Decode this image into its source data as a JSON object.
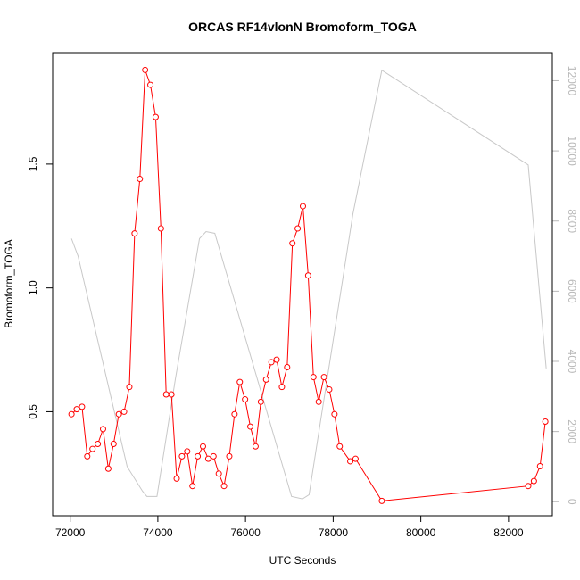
{
  "chart_data": {
    "type": "line",
    "title": "ORCAS RF14vlonN Bromoform_TOGA",
    "xlabel": "UTC Seconds",
    "ylabel": "Bromoform_TOGA",
    "xlim": [
      71600,
      83000
    ],
    "ylim": [
      0.08,
      1.95
    ],
    "y2lim": [
      -400,
      12800
    ],
    "x_ticks": [
      72000,
      74000,
      76000,
      78000,
      80000,
      82000
    ],
    "y_ticks": [
      0.5,
      1.0,
      1.5
    ],
    "y_tick_labels": [
      "0.5",
      "1.0",
      "1.5"
    ],
    "y2_ticks": [
      0,
      2000,
      4000,
      6000,
      8000,
      10000,
      12000
    ],
    "grid": false,
    "colors": {
      "primary": "#ff0000",
      "secondary": "#c8c8c8",
      "frame": "#000000",
      "right_axis": "#b8b8b8"
    },
    "series": [
      {
        "axis": "left",
        "style": "line+open-circles",
        "x": [
          72030,
          72150,
          72270,
          72390,
          72510,
          72630,
          72750,
          72870,
          72990,
          73110,
          73230,
          73350,
          73470,
          73590,
          73710,
          73830,
          73950,
          74070,
          74190,
          74310,
          74430,
          74550,
          74670,
          74790,
          74910,
          75030,
          75150,
          75270,
          75390,
          75510,
          75630,
          75750,
          75870,
          75990,
          76110,
          76230,
          76350,
          76470,
          76590,
          76710,
          76830,
          76950,
          77070,
          77190,
          77310,
          77430,
          77550,
          77670,
          77790,
          77910,
          78030,
          78150,
          78390,
          78510,
          79110,
          82450,
          82580,
          82720,
          82840
        ],
        "y": [
          0.49,
          0.51,
          0.52,
          0.32,
          0.35,
          0.37,
          0.43,
          0.27,
          0.37,
          0.49,
          0.5,
          0.6,
          1.22,
          1.44,
          1.88,
          1.82,
          1.69,
          1.24,
          0.57,
          0.57,
          0.23,
          0.32,
          0.34,
          0.2,
          0.32,
          0.36,
          0.31,
          0.32,
          0.25,
          0.2,
          0.32,
          0.49,
          0.62,
          0.55,
          0.44,
          0.36,
          0.54,
          0.63,
          0.7,
          0.71,
          0.6,
          0.68,
          1.18,
          1.24,
          1.33,
          1.05,
          0.64,
          0.54,
          0.64,
          0.59,
          0.49,
          0.36,
          0.3,
          0.31,
          0.14,
          0.2,
          0.22,
          0.28,
          0.46
        ]
      },
      {
        "axis": "right",
        "style": "line",
        "x": [
          72030,
          72180,
          73300,
          73650,
          73750,
          73980,
          74400,
          74950,
          75100,
          75300,
          77050,
          77300,
          77450,
          78450,
          79110,
          82450,
          82860
        ],
        "y": [
          7500,
          7000,
          1000,
          300,
          150,
          150,
          3500,
          7500,
          7700,
          7650,
          150,
          80,
          200,
          8200,
          12300,
          9600,
          3800
        ]
      }
    ]
  }
}
